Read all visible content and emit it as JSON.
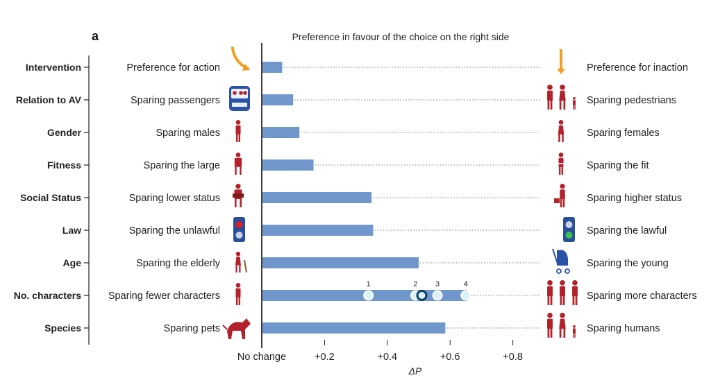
{
  "panel_label": "a",
  "chart_data": {
    "type": "bar",
    "orientation": "horizontal",
    "title": "Preference in favour of the choice on the right side",
    "xlabel": "ΔP",
    "xlim": [
      0,
      0.85
    ],
    "xticks": [
      0,
      0.2,
      0.4,
      0.6,
      0.8
    ],
    "xtick_labels": [
      "No change",
      "+0.2",
      "+0.4",
      "+0.6",
      "+0.8"
    ],
    "bar_color": "#6f97cb",
    "icon_color": "#b3222a",
    "categories": [
      {
        "attribute": "Intervention",
        "left": "Preference for action",
        "right": "Preference for inaction",
        "value": 0.065,
        "left_icon": "swerve-arrow-icon",
        "right_icon": "straight-arrow-icon"
      },
      {
        "attribute": "Relation to AV",
        "left": "Sparing passengers",
        "right": "Sparing pedestrians",
        "value": 0.1,
        "left_icon": "car-passengers-icon",
        "right_icon": "pedestrians-family-icon"
      },
      {
        "attribute": "Gender",
        "left": "Sparing males",
        "right": "Sparing females",
        "value": 0.12,
        "left_icon": "male-icon",
        "right_icon": "female-icon"
      },
      {
        "attribute": "Fitness",
        "left": "Sparing the large",
        "right": "Sparing the fit",
        "value": 0.165,
        "left_icon": "large-person-icon",
        "right_icon": "athlete-icon"
      },
      {
        "attribute": "Social Status",
        "left": "Sparing lower status",
        "right": "Sparing higher status",
        "value": 0.35,
        "left_icon": "homeless-icon",
        "right_icon": "executive-icon"
      },
      {
        "attribute": "Law",
        "left": "Sparing the unlawful",
        "right": "Sparing the lawful",
        "value": 0.355,
        "left_icon": "red-light-icon",
        "right_icon": "green-walk-light-icon"
      },
      {
        "attribute": "Age",
        "left": "Sparing the elderly",
        "right": "Sparing the young",
        "value": 0.5,
        "left_icon": "elderly-icon",
        "right_icon": "stroller-icon"
      },
      {
        "attribute": "No. characters",
        "left": "Sparing fewer characters",
        "right": "Sparing more characters",
        "value": 0.655,
        "left_icon": "single-person-icon",
        "right_icon": "group-icon"
      },
      {
        "attribute": "Species",
        "left": "Sparing pets",
        "right": "Sparing humans",
        "value": 0.585,
        "left_icon": "dog-icon",
        "right_icon": "humans-icon"
      }
    ],
    "character_points": [
      {
        "label": "1",
        "value": 0.34
      },
      {
        "label": "2",
        "value": 0.49
      },
      {
        "label": "3",
        "value": 0.56
      },
      {
        "label": "4",
        "value": 0.65
      }
    ],
    "character_point_average": 0.51,
    "grid": false,
    "legend": "none"
  }
}
